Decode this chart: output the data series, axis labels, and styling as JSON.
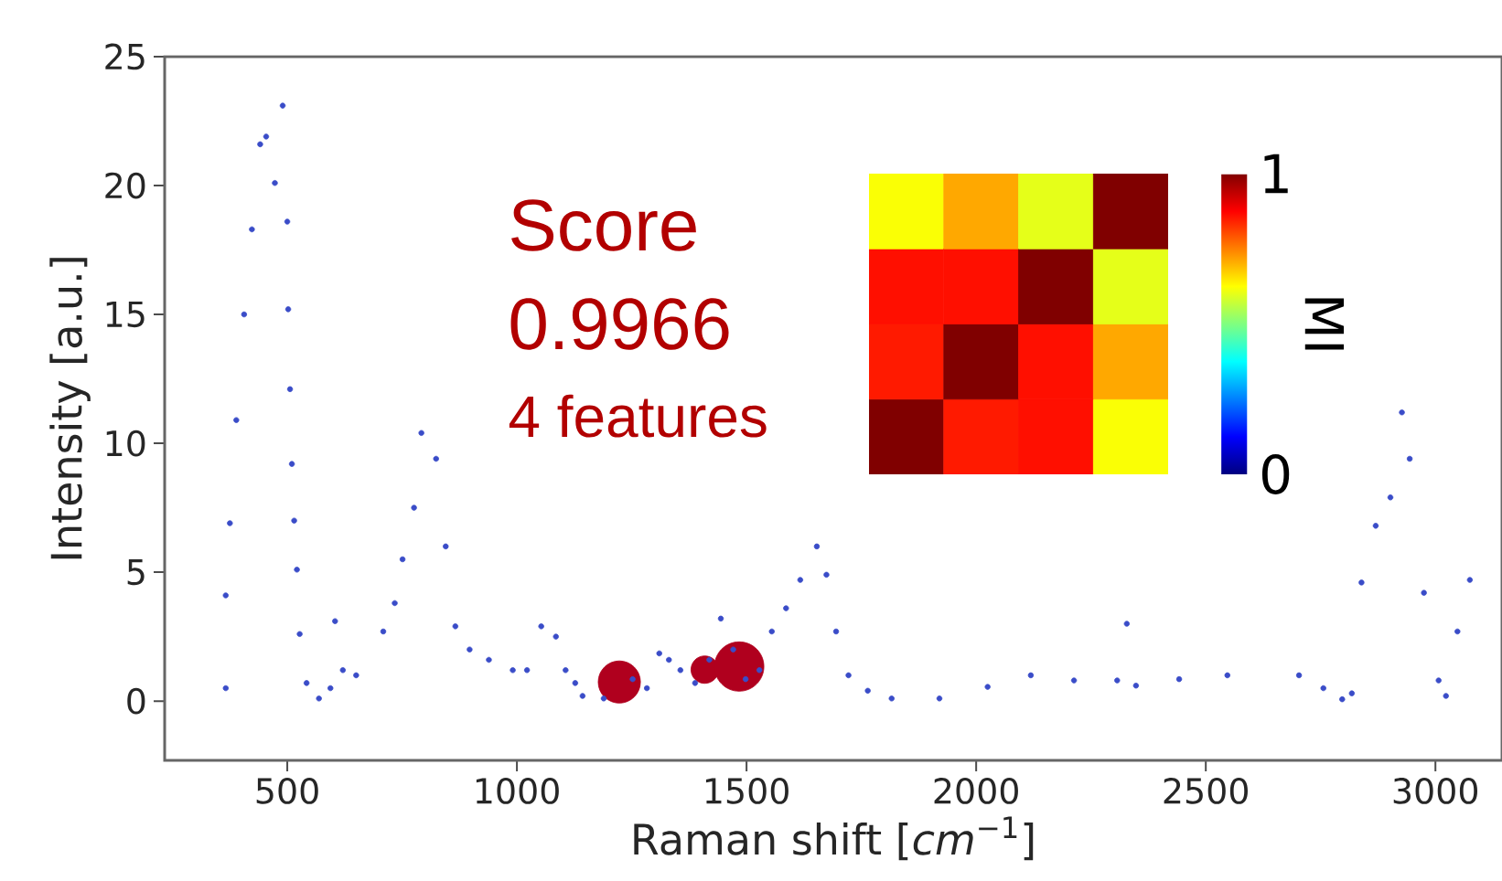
{
  "chart_data": [
    {
      "type": "scatter",
      "xlabel": "Raman shift [*cm*$^{−1}$]",
      "ylabel": "Intensity [a.u.]",
      "xlim": [
        233,
        3145
      ],
      "ylim": [
        -2.3,
        25
      ],
      "xticks": [
        500,
        1000,
        1500,
        2000,
        2500,
        3000
      ],
      "yticks": [
        0,
        5,
        10,
        15,
        20,
        25
      ],
      "annotations": [
        "Score",
        "0.9966",
        "4 features"
      ],
      "series": [
        {
          "color": "#3a4cc8",
          "x": [
            366,
            366,
            375,
            389,
            406,
            423,
            441,
            454,
            473,
            490,
            500,
            502,
            506,
            510,
            515,
            521,
            527,
            542,
            569,
            594,
            604,
            621,
            650,
            709,
            734,
            751,
            776,
            792,
            824,
            845,
            866,
            897,
            939,
            991,
            1022,
            1053,
            1085,
            1106,
            1127,
            1143,
            1189,
            1252,
            1283,
            1310,
            1331,
            1356,
            1388,
            1419,
            1444,
            1471,
            1498,
            1528,
            1555,
            1586,
            1617,
            1653,
            1674,
            1695,
            1722,
            1764,
            1816,
            1920,
            2025,
            2119,
            2213,
            2307,
            2328,
            2348,
            2442,
            2547,
            2703,
            2756,
            2797,
            2818,
            2839,
            2870,
            2902,
            2927,
            2944,
            2975,
            3007,
            3023,
            3048,
            3075
          ],
          "values": [
            0.5,
            4.1,
            6.9,
            10.9,
            15,
            18.3,
            21.6,
            21.9,
            20.1,
            23.1,
            18.6,
            15.2,
            12.1,
            9.2,
            7.0,
            5.1,
            2.6,
            0.7,
            0.1,
            0.5,
            3.1,
            1.2,
            1.0,
            2.7,
            3.8,
            5.5,
            7.5,
            10.4,
            9.4,
            6.0,
            2.9,
            2.0,
            1.6,
            1.2,
            1.2,
            2.9,
            2.5,
            1.2,
            0.7,
            0.2,
            0.1,
            0.85,
            0.5,
            1.85,
            1.6,
            1.2,
            0.7,
            1.6,
            3.2,
            2.0,
            0.85,
            1.2,
            2.7,
            3.6,
            4.7,
            6.0,
            4.9,
            2.7,
            1.0,
            0.4,
            0.1,
            0.1,
            0.55,
            1.0,
            0.8,
            0.8,
            3.0,
            0.6,
            0.85,
            1.0,
            1.0,
            0.5,
            0.07,
            0.3,
            4.6,
            6.8,
            7.9,
            11.2,
            9.4,
            4.2,
            0.8,
            0.2,
            2.7,
            4.7
          ]
        },
        {
          "type": "bubble",
          "color": "#b0001e",
          "x": [
            1223,
            1409,
            1484
          ],
          "values": [
            0.74,
            1.22,
            1.34
          ],
          "sizes": [
            0.73,
            0.31,
            1
          ]
        }
      ]
    },
    {
      "type": "heatmap",
      "categories": [
        null,
        null,
        null,
        null
      ],
      "y_categories": [
        null,
        null,
        null,
        null
      ],
      "cells": [
        [
          0.62,
          0.71,
          0.6,
          1
        ],
        [
          0.86,
          0.86,
          1,
          0.6
        ],
        [
          0.85,
          1,
          0.86,
          0.71
        ],
        [
          1,
          0.85,
          0.86,
          0.62
        ]
      ],
      "clim": [
        0,
        1
      ],
      "cticks": [
        0,
        1
      ],
      "clabel": "MI"
    }
  ]
}
